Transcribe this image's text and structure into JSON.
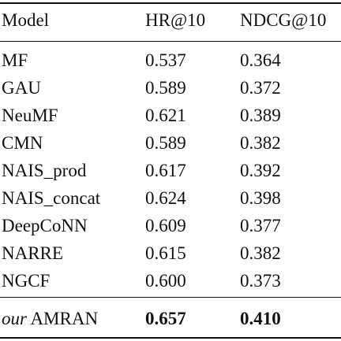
{
  "table": {
    "headers": [
      "Model",
      "HR@10",
      "NDCG@10"
    ],
    "rows": [
      {
        "model": "MF",
        "hr": "0.537",
        "ndcg": "0.364"
      },
      {
        "model": "GAU",
        "hr": "0.589",
        "ndcg": "0.372"
      },
      {
        "model": "NeuMF",
        "hr": "0.621",
        "ndcg": "0.389"
      },
      {
        "model": "CMN",
        "hr": "0.589",
        "ndcg": "0.382"
      },
      {
        "model": "NAIS_prod",
        "hr": "0.617",
        "ndcg": "0.392"
      },
      {
        "model": "NAIS_concat",
        "hr": "0.624",
        "ndcg": "0.398"
      },
      {
        "model": "DeepCoNN",
        "hr": "0.609",
        "ndcg": "0.377"
      },
      {
        "model": "NARRE",
        "hr": "0.615",
        "ndcg": "0.382"
      },
      {
        "model": "NGCF",
        "hr": "0.600",
        "ndcg": "0.373"
      }
    ],
    "final_row": {
      "model_prefix": "our",
      "model_name": "AMRAN",
      "hr": "0.657",
      "ndcg": "0.410"
    }
  }
}
